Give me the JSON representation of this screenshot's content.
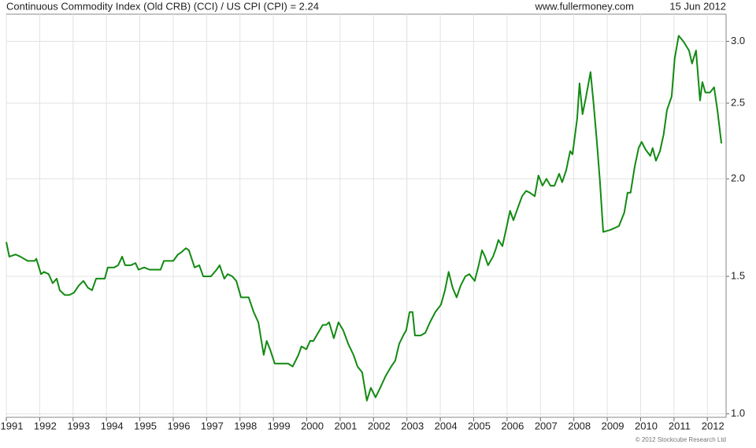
{
  "chart_data": {
    "type": "line",
    "title": "Continuous Commodity Index (Old CRB) (CCI) / US CPI (CPI) = 2.24",
    "source": "www.fullermoney.com",
    "date": "15 Jun 2012",
    "copyright": "© 2012 Stockcube Research Ltd",
    "log_scale": true,
    "grid": true,
    "xlim": [
      1991,
      2012.56
    ],
    "xticks": [
      1991,
      1992,
      1993,
      1994,
      1995,
      1996,
      1997,
      1998,
      1999,
      2000,
      2001,
      2002,
      2003,
      2004,
      2005,
      2006,
      2007,
      2008,
      2009,
      2010,
      2011,
      2012
    ],
    "ylim": [
      0.99,
      3.25
    ],
    "yticks": [
      {
        "value": 1,
        "label": "1.0"
      },
      1.5,
      {
        "value": 2,
        "label": "2.0"
      },
      2.5,
      {
        "value": 3,
        "label": "3.0"
      }
    ],
    "series": [
      {
        "color": "#128a12",
        "x": [
          1991.0,
          1991.09,
          1991.28,
          1991.42,
          1991.64,
          1991.85,
          1991.9,
          1992.04,
          1992.13,
          1992.27,
          1992.39,
          1992.51,
          1992.6,
          1992.75,
          1992.89,
          1993.03,
          1993.17,
          1993.31,
          1993.45,
          1993.57,
          1993.69,
          1993.78,
          1993.95,
          1994.04,
          1994.23,
          1994.35,
          1994.47,
          1994.56,
          1994.73,
          1994.87,
          1994.96,
          1995.13,
          1995.29,
          1995.48,
          1995.62,
          1995.72,
          1995.86,
          1996.0,
          1996.14,
          1996.24,
          1996.38,
          1996.47,
          1996.64,
          1996.78,
          1996.9,
          1997.13,
          1997.3,
          1997.39,
          1997.53,
          1997.63,
          1997.77,
          1997.89,
          1998.03,
          1998.26,
          1998.41,
          1998.55,
          1998.71,
          1998.8,
          1998.9,
          1999.04,
          1999.25,
          1999.44,
          1999.58,
          1999.75,
          1999.84,
          1999.99,
          2000.1,
          2000.2,
          2000.34,
          2000.48,
          2000.58,
          2000.67,
          2000.81,
          2000.95,
          2001.09,
          2001.24,
          2001.4,
          2001.52,
          2001.66,
          2001.8,
          2001.92,
          2002.06,
          2002.2,
          2002.37,
          2002.53,
          2002.65,
          2002.77,
          2002.89,
          2002.98,
          2003.08,
          2003.17,
          2003.24,
          2003.41,
          2003.55,
          2003.69,
          2003.85,
          2004.02,
          2004.14,
          2004.25,
          2004.37,
          2004.49,
          2004.61,
          2004.75,
          2004.87,
          2005.03,
          2005.15,
          2005.25,
          2005.34,
          2005.43,
          2005.58,
          2005.67,
          2005.74,
          2005.86,
          2005.98,
          2006.09,
          2006.19,
          2006.33,
          2006.45,
          2006.57,
          2006.68,
          2006.83,
          2006.94,
          2007.06,
          2007.18,
          2007.3,
          2007.42,
          2007.56,
          2007.65,
          2007.77,
          2007.89,
          2007.96,
          2008.1,
          2008.17,
          2008.26,
          2008.36,
          2008.5,
          2008.59,
          2008.69,
          2008.78,
          2008.88,
          2009.09,
          2009.35,
          2009.51,
          2009.61,
          2009.7,
          2009.82,
          2009.94,
          2010.03,
          2010.15,
          2010.29,
          2010.36,
          2010.46,
          2010.58,
          2010.69,
          2010.79,
          2010.93,
          2011.02,
          2011.14,
          2011.28,
          2011.45,
          2011.54,
          2011.66,
          2011.78,
          2011.85,
          2011.94,
          2012.08,
          2012.2,
          2012.3,
          2012.42
        ],
        "values": [
          1.66,
          1.59,
          1.6,
          1.59,
          1.57,
          1.57,
          1.58,
          1.51,
          1.52,
          1.51,
          1.47,
          1.49,
          1.44,
          1.42,
          1.42,
          1.43,
          1.46,
          1.48,
          1.45,
          1.44,
          1.49,
          1.49,
          1.49,
          1.54,
          1.54,
          1.55,
          1.59,
          1.55,
          1.55,
          1.56,
          1.53,
          1.54,
          1.53,
          1.53,
          1.53,
          1.57,
          1.57,
          1.57,
          1.6,
          1.61,
          1.63,
          1.62,
          1.54,
          1.55,
          1.5,
          1.5,
          1.53,
          1.55,
          1.49,
          1.51,
          1.5,
          1.48,
          1.41,
          1.41,
          1.35,
          1.31,
          1.19,
          1.24,
          1.21,
          1.16,
          1.16,
          1.16,
          1.15,
          1.19,
          1.22,
          1.21,
          1.24,
          1.24,
          1.27,
          1.3,
          1.3,
          1.31,
          1.25,
          1.31,
          1.28,
          1.23,
          1.19,
          1.15,
          1.13,
          1.04,
          1.08,
          1.05,
          1.08,
          1.12,
          1.15,
          1.17,
          1.23,
          1.26,
          1.28,
          1.35,
          1.35,
          1.26,
          1.26,
          1.27,
          1.31,
          1.35,
          1.38,
          1.44,
          1.52,
          1.45,
          1.41,
          1.46,
          1.5,
          1.51,
          1.48,
          1.55,
          1.62,
          1.59,
          1.55,
          1.59,
          1.63,
          1.67,
          1.64,
          1.73,
          1.82,
          1.77,
          1.84,
          1.9,
          1.93,
          1.92,
          1.9,
          2.02,
          1.96,
          2.0,
          1.96,
          1.96,
          2.03,
          1.98,
          2.05,
          2.17,
          2.15,
          2.39,
          2.65,
          2.42,
          2.54,
          2.74,
          2.5,
          2.23,
          1.99,
          1.71,
          1.72,
          1.74,
          1.81,
          1.92,
          1.92,
          2.07,
          2.19,
          2.23,
          2.18,
          2.14,
          2.19,
          2.11,
          2.17,
          2.28,
          2.45,
          2.55,
          2.85,
          3.05,
          3.0,
          2.92,
          2.81,
          2.92,
          2.52,
          2.66,
          2.58,
          2.58,
          2.62,
          2.45,
          2.22
        ]
      }
    ]
  }
}
